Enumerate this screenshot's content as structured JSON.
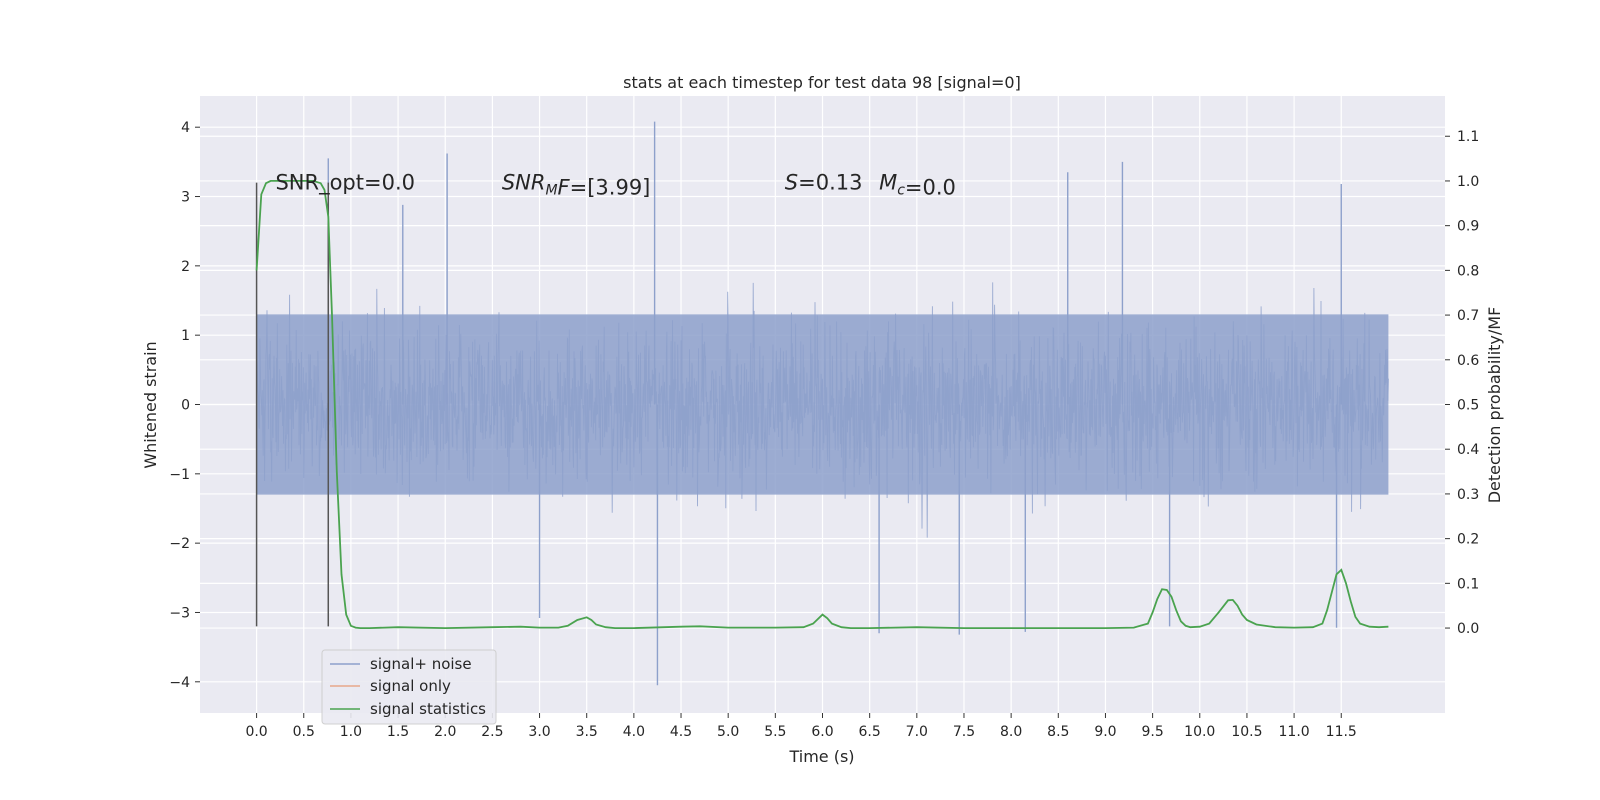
{
  "chart_data": {
    "type": "line",
    "title": "stats at each timestep for test data 98 [signal=0]",
    "xlabel": "Time (s)",
    "ylabel_left": "Whitened strain",
    "ylabel_right": "Detection probability/MF",
    "xlim": [
      -0.6,
      12.6
    ],
    "ylim_left": [
      -4.45,
      4.45
    ],
    "ylim_right": [
      -0.19,
      1.19
    ],
    "xticks": [
      0.0,
      0.5,
      1.0,
      1.5,
      2.0,
      2.5,
      3.0,
      3.5,
      4.0,
      4.5,
      5.0,
      5.5,
      6.0,
      6.5,
      7.0,
      7.5,
      8.0,
      8.5,
      9.0,
      9.5,
      10.0,
      10.5,
      11.0,
      11.5
    ],
    "xtick_labels": [
      "0.0",
      "0.5",
      "1.0",
      "1.5",
      "2.0",
      "2.5",
      "3.0",
      "3.5",
      "4.0",
      "4.5",
      "5.0",
      "5.5",
      "6.0",
      "6.5",
      "7.0",
      "7.5",
      "8.0",
      "8.5",
      "9.0",
      "9.5",
      "10.0",
      "10.5",
      "11.0",
      "11.5"
    ],
    "yticks_left": [
      -4,
      -3,
      -2,
      -1,
      0,
      1,
      2,
      3,
      4
    ],
    "ytick_labels_left": [
      "−4",
      "−3",
      "−2",
      "−1",
      "0",
      "1",
      "2",
      "3",
      "4"
    ],
    "yticks_right": [
      0.0,
      0.1,
      0.2,
      0.3,
      0.4,
      0.5,
      0.6,
      0.7,
      0.8,
      0.9,
      1.0,
      1.1
    ],
    "ytick_labels_right": [
      "0.0",
      "0.1",
      "0.2",
      "0.3",
      "0.4",
      "0.5",
      "0.6",
      "0.7",
      "0.8",
      "0.9",
      "1.0",
      "1.1"
    ],
    "grid": true,
    "legend_position": "lower-left",
    "series": [
      {
        "name": "signal+ noise",
        "axis": "left",
        "color": "#8da0cb",
        "style": "dense noise trace",
        "x_range": [
          0.0,
          12.0
        ],
        "envelope_core": [
          -1.3,
          1.3
        ],
        "peaks": [
          [
            0.76,
            3.55
          ],
          [
            2.02,
            3.62
          ],
          [
            4.22,
            4.08
          ],
          [
            9.18,
            3.5
          ],
          [
            8.6,
            3.35
          ],
          [
            11.5,
            3.18
          ],
          [
            1.55,
            2.88
          ],
          [
            4.25,
            -4.05
          ],
          [
            7.45,
            -3.32
          ],
          [
            8.15,
            -3.28
          ],
          [
            9.68,
            -3.2
          ],
          [
            6.6,
            -3.3
          ],
          [
            3.0,
            -3.08
          ],
          [
            11.45,
            -3.22
          ]
        ]
      },
      {
        "name": "signal only",
        "axis": "left",
        "color": "#e8a889",
        "x": [],
        "y": []
      },
      {
        "name": "signal statistics",
        "axis": "right",
        "color": "#4aa34f",
        "x": [
          0.0,
          0.05,
          0.1,
          0.15,
          0.2,
          0.3,
          0.4,
          0.5,
          0.6,
          0.68,
          0.72,
          0.76,
          0.8,
          0.85,
          0.9,
          0.95,
          1.0,
          1.05,
          1.1,
          1.2,
          1.5,
          2.0,
          2.5,
          2.8,
          3.0,
          3.2,
          3.3,
          3.4,
          3.5,
          3.55,
          3.6,
          3.7,
          3.8,
          4.0,
          4.5,
          4.7,
          5.0,
          5.5,
          5.8,
          5.9,
          6.0,
          6.05,
          6.1,
          6.2,
          6.3,
          6.5,
          7.0,
          7.5,
          8.0,
          8.5,
          9.0,
          9.3,
          9.45,
          9.5,
          9.55,
          9.6,
          9.65,
          9.7,
          9.75,
          9.8,
          9.85,
          9.9,
          10.0,
          10.1,
          10.2,
          10.3,
          10.35,
          10.4,
          10.45,
          10.5,
          10.6,
          10.8,
          11.0,
          11.2,
          11.3,
          11.35,
          11.4,
          11.45,
          11.5,
          11.55,
          11.6,
          11.65,
          11.7,
          11.8,
          11.9,
          12.0
        ],
        "y": [
          0.8,
          0.97,
          0.995,
          1.0,
          1.0,
          1.0,
          1.0,
          1.0,
          1.0,
          0.995,
          0.98,
          0.92,
          0.7,
          0.35,
          0.12,
          0.03,
          0.005,
          0.001,
          0.0,
          0.0,
          0.002,
          0.0,
          0.002,
          0.003,
          0.001,
          0.001,
          0.005,
          0.018,
          0.024,
          0.018,
          0.008,
          0.002,
          0.0,
          0.0,
          0.003,
          0.004,
          0.001,
          0.001,
          0.002,
          0.01,
          0.03,
          0.022,
          0.01,
          0.002,
          0.0,
          0.0,
          0.002,
          0.0,
          0.0,
          0.0,
          0.0,
          0.001,
          0.01,
          0.035,
          0.065,
          0.087,
          0.085,
          0.07,
          0.04,
          0.015,
          0.005,
          0.002,
          0.003,
          0.01,
          0.035,
          0.062,
          0.063,
          0.05,
          0.03,
          0.018,
          0.008,
          0.002,
          0.001,
          0.002,
          0.01,
          0.04,
          0.08,
          0.12,
          0.13,
          0.1,
          0.06,
          0.025,
          0.01,
          0.003,
          0.002,
          0.003
        ]
      }
    ],
    "vertical_markers_x": [
      0.0,
      0.76
    ],
    "annotations": [
      {
        "parts": [
          {
            "t": "SNR_opt=0.0",
            "i": false
          }
        ]
      },
      {
        "parts": [
          {
            "t": "SNR",
            "i": true
          },
          {
            "t": "M",
            "i": true,
            "sub": true
          },
          {
            "t": "F",
            "i": true
          },
          {
            "t": "=[3.99]",
            "i": false
          }
        ]
      },
      {
        "parts": [
          {
            "t": "S",
            "i": true
          },
          {
            "t": "=0.13",
            "i": false
          }
        ]
      },
      {
        "parts": [
          {
            "t": "M",
            "i": true
          },
          {
            "t": "c",
            "i": true,
            "sub": true
          },
          {
            "t": "=0.0",
            "i": false
          }
        ]
      }
    ],
    "colors": {
      "plot_bg": "#eaeaf2",
      "grid": "#ffffff",
      "noise": "#8da0cb",
      "signal": "#e8a889",
      "stats": "#4aa34f",
      "marker": "#555555"
    }
  }
}
